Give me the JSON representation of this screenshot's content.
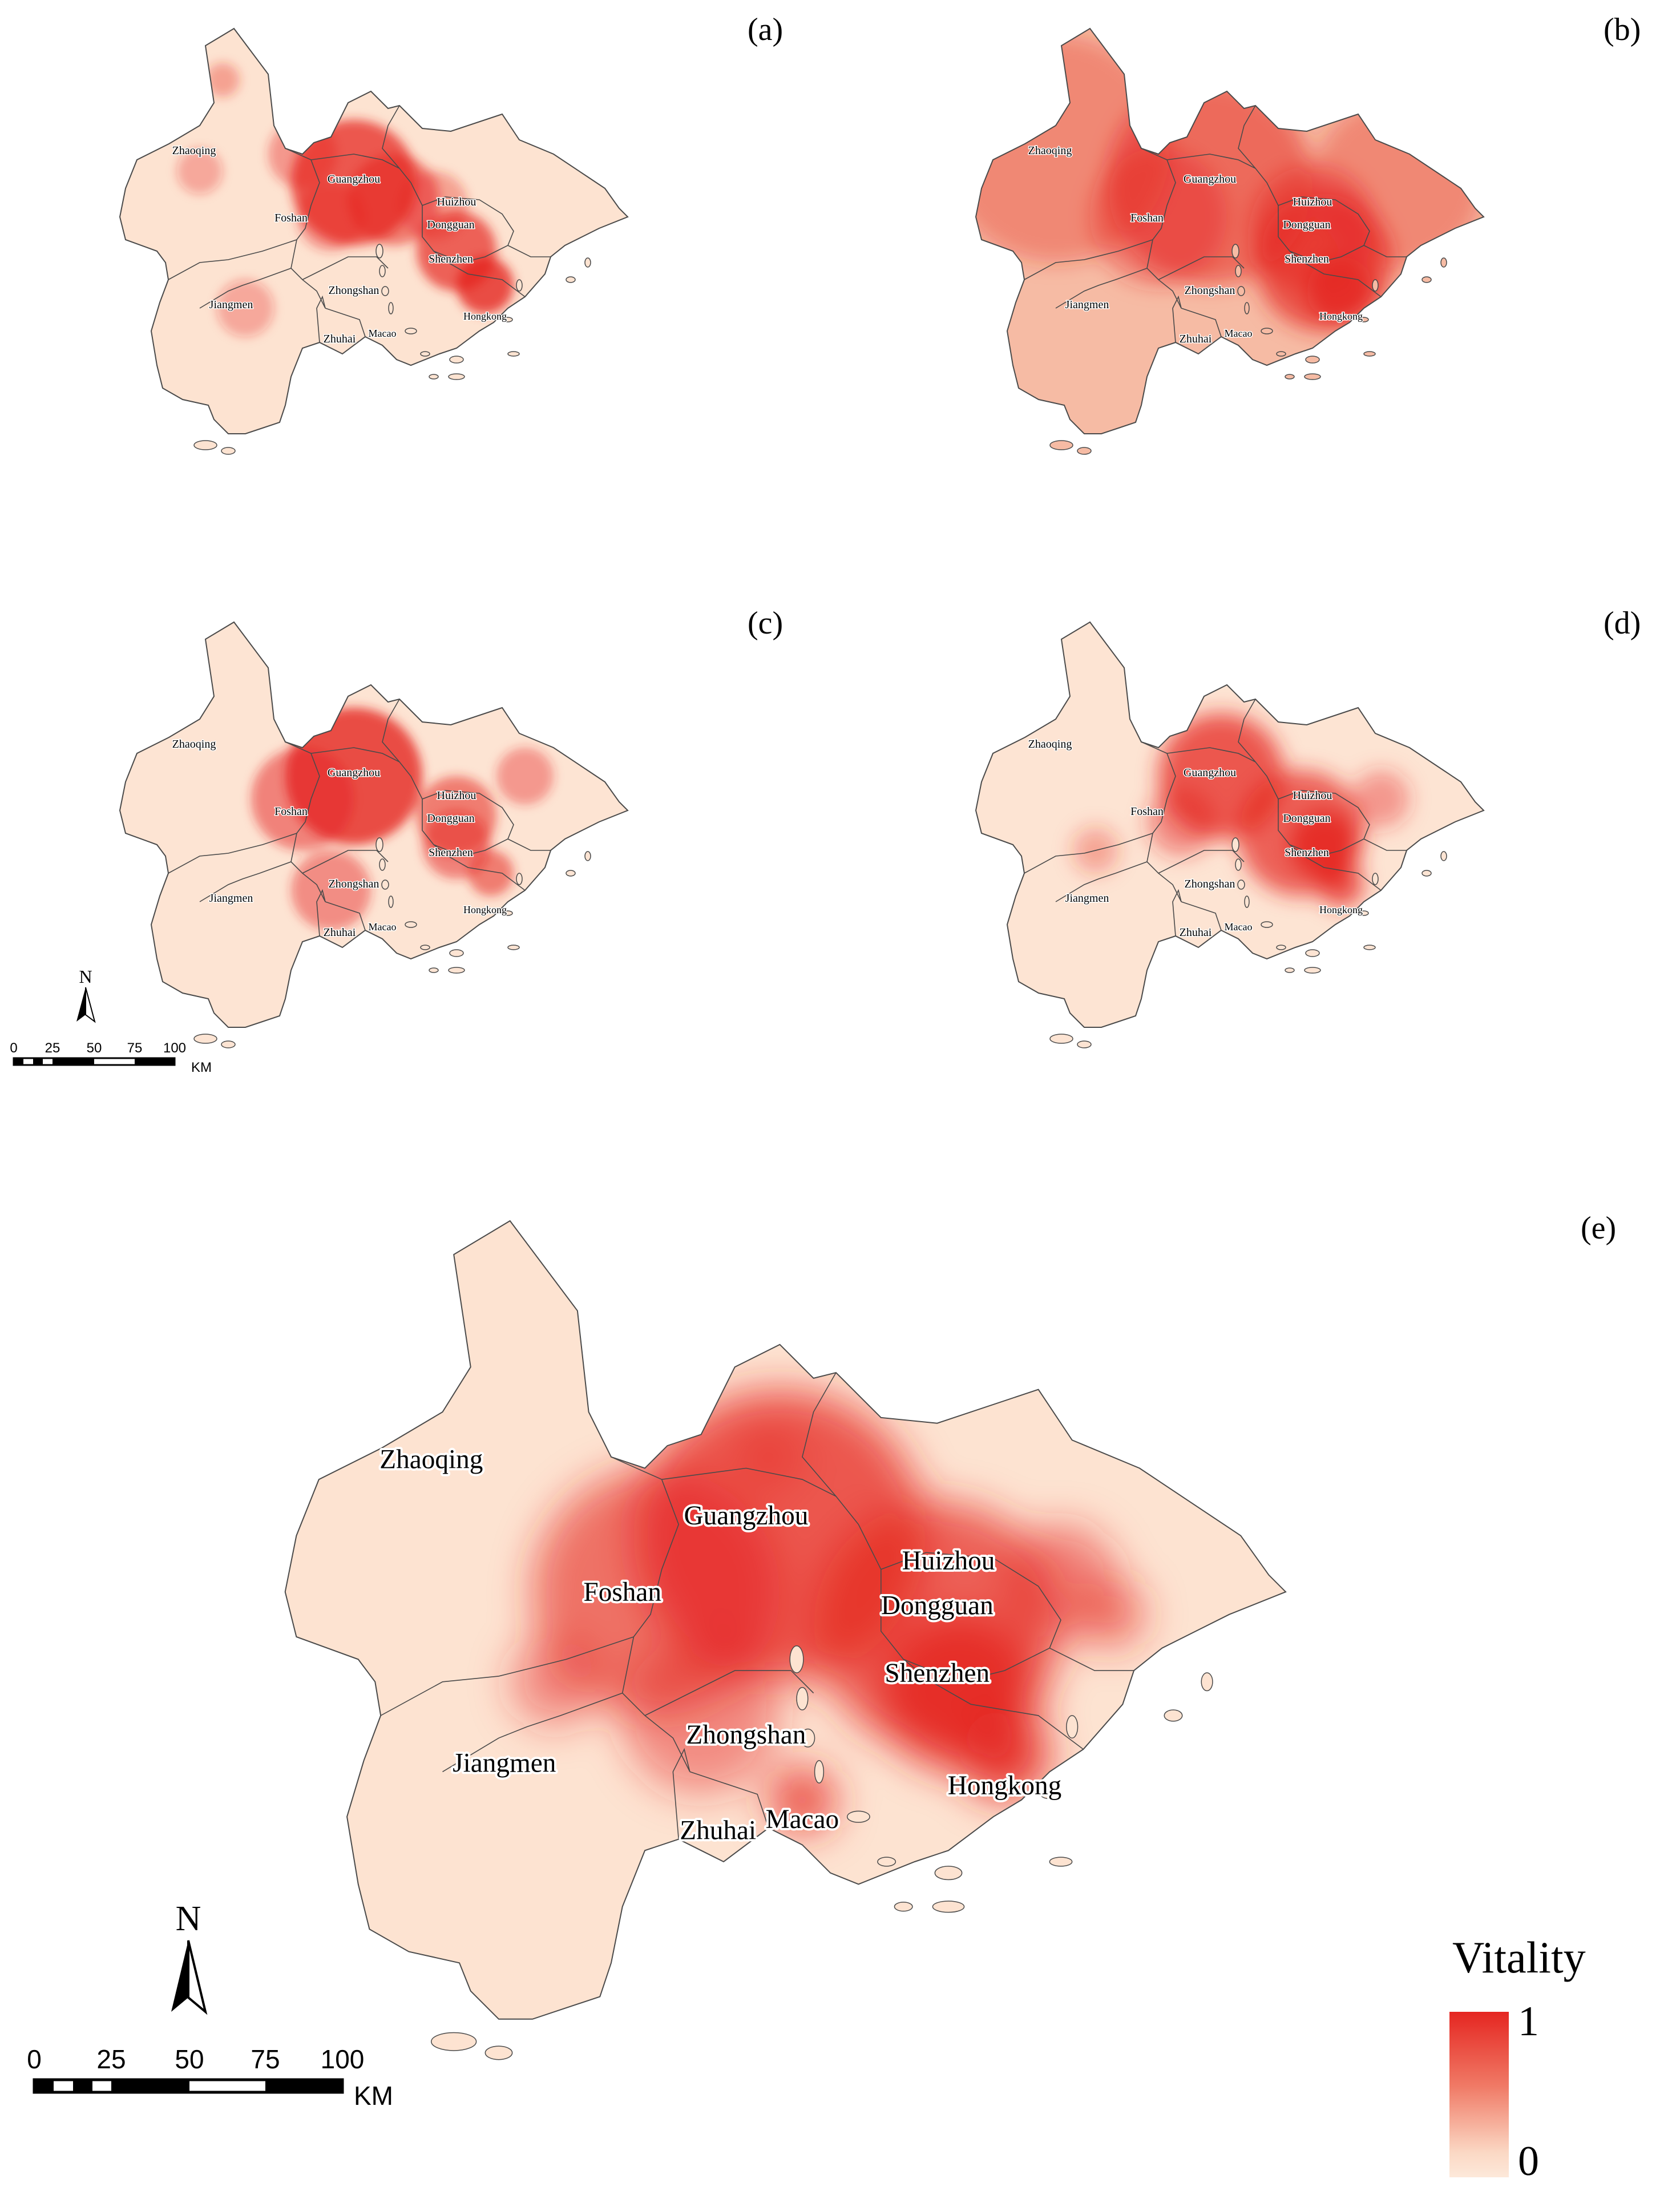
{
  "panels": [
    {
      "id": "a",
      "label": "(a)"
    },
    {
      "id": "b",
      "label": "(b)"
    },
    {
      "id": "c",
      "label": "(c)"
    },
    {
      "id": "d",
      "label": "(d)"
    },
    {
      "id": "e",
      "label": "(e)"
    }
  ],
  "cities": {
    "zhaoqing": "Zhaoqing",
    "guangzhou": "Guangzhou",
    "foshan": "Foshan",
    "huizhou": "Huizhou",
    "dongguan": "Dongguan",
    "shenzhen": "Shenzhen",
    "zhongshan": "Zhongshan",
    "jiangmen": "Jiangmen",
    "zhuhai": "Zhuhai",
    "macao": "Macao",
    "hongkong": "Hongkong"
  },
  "north_arrow": "N",
  "scale_bar": {
    "ticks": [
      "0",
      "25",
      "50",
      "75",
      "100"
    ],
    "unit": "KM"
  },
  "legend": {
    "title": "Vitality",
    "max": "1",
    "min": "0",
    "colors": {
      "high": "#e52621",
      "low": "#fde9da"
    }
  },
  "colors": {
    "base": "#fde3d1",
    "outline": "#4a4a4a"
  }
}
